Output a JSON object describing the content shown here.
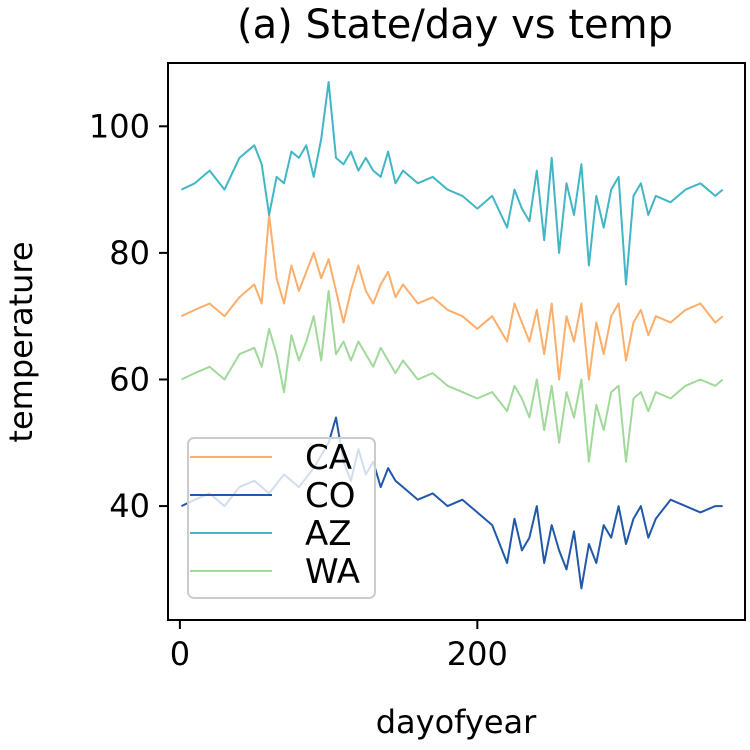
{
  "chart_data": {
    "type": "line",
    "title": "(a) State/day vs temp",
    "xlabel": "dayofyear",
    "ylabel": "temperature",
    "xlim": [
      -8,
      380
    ],
    "ylim": [
      22,
      110
    ],
    "xticks": [
      0,
      200
    ],
    "xtick_labels": [
      "0",
      "200"
    ],
    "yticks": [
      40,
      60,
      80,
      100
    ],
    "ytick_labels": [
      "40",
      "60",
      "80",
      "100"
    ],
    "grid": false,
    "legend_position": "lower-left",
    "series": [
      {
        "name": "CA",
        "color": "#fdae6b",
        "x": [
          1,
          10,
          20,
          30,
          40,
          50,
          55,
          60,
          65,
          70,
          75,
          80,
          85,
          90,
          95,
          100,
          105,
          110,
          115,
          120,
          125,
          130,
          135,
          140,
          145,
          150,
          160,
          170,
          180,
          190,
          200,
          210,
          220,
          225,
          230,
          235,
          240,
          245,
          250,
          255,
          260,
          265,
          270,
          275,
          280,
          285,
          290,
          295,
          300,
          305,
          310,
          315,
          320,
          330,
          340,
          350,
          360,
          365
        ],
        "y": [
          70,
          71,
          72,
          70,
          73,
          75,
          72,
          86,
          76,
          72,
          78,
          74,
          77,
          80,
          76,
          79,
          74,
          69,
          74,
          78,
          74,
          72,
          75,
          77,
          73,
          75,
          72,
          73,
          71,
          70,
          68,
          70,
          66,
          72,
          69,
          66,
          71,
          64,
          72,
          60,
          70,
          66,
          72,
          60,
          69,
          64,
          70,
          72,
          63,
          69,
          71,
          67,
          70,
          69,
          71,
          72,
          69,
          70
        ]
      },
      {
        "name": "CO",
        "color": "#2158a8",
        "x": [
          1,
          10,
          20,
          30,
          40,
          50,
          60,
          70,
          80,
          90,
          100,
          105,
          110,
          115,
          120,
          125,
          130,
          135,
          140,
          145,
          150,
          160,
          170,
          180,
          190,
          200,
          210,
          220,
          225,
          230,
          235,
          240,
          245,
          250,
          255,
          260,
          265,
          270,
          275,
          280,
          285,
          290,
          295,
          300,
          305,
          310,
          315,
          320,
          330,
          340,
          350,
          360,
          365
        ],
        "y": [
          40,
          41,
          42,
          40,
          43,
          44,
          42,
          45,
          43,
          46,
          50,
          54,
          47,
          44,
          49,
          45,
          47,
          43,
          46,
          44,
          43,
          41,
          42,
          40,
          41,
          39,
          37,
          31,
          38,
          33,
          35,
          40,
          31,
          37,
          33,
          30,
          36,
          27,
          34,
          31,
          37,
          35,
          40,
          34,
          38,
          40,
          35,
          38,
          41,
          40,
          39,
          40,
          40
        ]
      },
      {
        "name": "AZ",
        "color": "#41b6c4",
        "x": [
          1,
          10,
          20,
          30,
          40,
          50,
          55,
          60,
          65,
          70,
          75,
          80,
          85,
          90,
          95,
          100,
          105,
          110,
          115,
          120,
          125,
          130,
          135,
          140,
          145,
          150,
          160,
          170,
          180,
          190,
          200,
          210,
          220,
          225,
          230,
          235,
          240,
          245,
          250,
          255,
          260,
          265,
          270,
          275,
          280,
          285,
          290,
          295,
          300,
          305,
          310,
          315,
          320,
          330,
          340,
          350,
          360,
          365
        ],
        "y": [
          90,
          91,
          93,
          90,
          95,
          97,
          94,
          86,
          92,
          91,
          96,
          95,
          97,
          92,
          98,
          107,
          95,
          94,
          96,
          93,
          95,
          93,
          92,
          96,
          91,
          93,
          91,
          92,
          90,
          89,
          87,
          89,
          84,
          90,
          87,
          85,
          93,
          82,
          95,
          80,
          91,
          86,
          94,
          78,
          89,
          84,
          90,
          92,
          75,
          89,
          91,
          86,
          89,
          88,
          90,
          91,
          89,
          90
        ]
      },
      {
        "name": "WA",
        "color": "#a1d99b",
        "x": [
          1,
          10,
          20,
          30,
          40,
          50,
          55,
          60,
          65,
          70,
          75,
          80,
          85,
          90,
          95,
          100,
          105,
          110,
          115,
          120,
          125,
          130,
          135,
          140,
          145,
          150,
          160,
          170,
          180,
          190,
          200,
          210,
          220,
          225,
          230,
          235,
          240,
          245,
          250,
          255,
          260,
          265,
          270,
          275,
          280,
          285,
          290,
          295,
          300,
          305,
          310,
          315,
          320,
          330,
          340,
          350,
          360,
          365
        ],
        "y": [
          60,
          61,
          62,
          60,
          64,
          65,
          62,
          68,
          64,
          58,
          67,
          63,
          66,
          70,
          63,
          74,
          64,
          66,
          63,
          66,
          64,
          62,
          65,
          63,
          61,
          63,
          60,
          61,
          59,
          58,
          57,
          58,
          55,
          59,
          57,
          54,
          60,
          52,
          59,
          50,
          58,
          54,
          60,
          47,
          56,
          52,
          58,
          59,
          47,
          57,
          58,
          55,
          58,
          57,
          59,
          60,
          59,
          60
        ]
      }
    ]
  }
}
